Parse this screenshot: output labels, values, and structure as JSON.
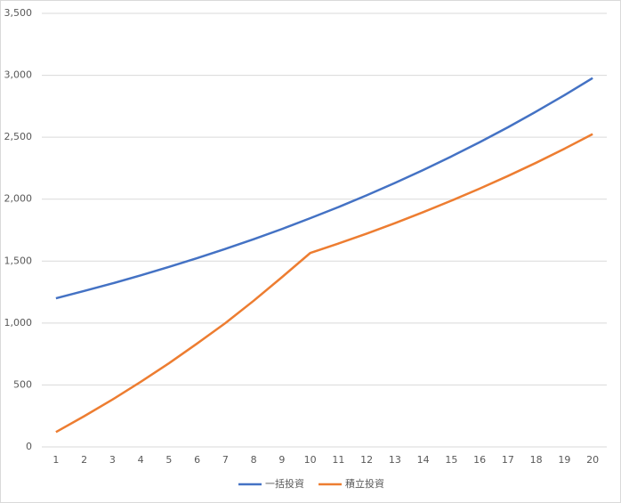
{
  "chart_data": {
    "type": "line",
    "categories": [
      "1",
      "2",
      "3",
      "4",
      "5",
      "6",
      "7",
      "8",
      "9",
      "10",
      "11",
      "12",
      "13",
      "14",
      "15",
      "16",
      "17",
      "18",
      "19",
      "20"
    ],
    "series": [
      {
        "name": "一括投資",
        "color": "#4472c4",
        "values": [
          1200,
          1259,
          1320,
          1385,
          1453,
          1524,
          1599,
          1677,
          1759,
          1846,
          1936,
          2031,
          2131,
          2235,
          2345,
          2460,
          2580,
          2707,
          2839,
          2978
        ]
      },
      {
        "name": "積立投資",
        "color": "#ed7d31",
        "values": [
          120,
          248,
          382,
          525,
          675,
          835,
          1000,
          1180,
          1370,
          1565,
          1642,
          1722,
          1806,
          1895,
          1988,
          2085,
          2187,
          2294,
          2407,
          2525
        ]
      }
    ],
    "ylim": [
      0,
      3500
    ],
    "yticks": [
      0,
      500,
      {
        "value": 1000,
        "label": "1,000"
      },
      {
        "value": 1500,
        "label": "1,500"
      },
      {
        "value": 2000,
        "label": "2,000"
      },
      {
        "value": 2500,
        "label": "2,500"
      },
      {
        "value": 3000,
        "label": "3,000"
      },
      {
        "value": 3500,
        "label": "3,500"
      }
    ],
    "grid": true,
    "legend": "bottom"
  }
}
